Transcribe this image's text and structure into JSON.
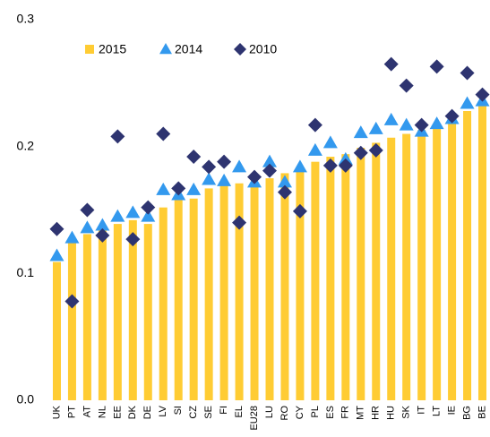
{
  "chart_data": {
    "type": "bar",
    "categories": [
      "UK",
      "PT",
      "AT",
      "NL",
      "EE",
      "DK",
      "DE",
      "LV",
      "SI",
      "CZ",
      "SE",
      "FI",
      "EL",
      "EU28",
      "LU",
      "RO",
      "CY",
      "PL",
      "ES",
      "FR",
      "MT",
      "HR",
      "HU",
      "SK",
      "IT",
      "LT",
      "IE",
      "BG",
      "BE"
    ],
    "series": [
      {
        "name": "2015",
        "marker": "bar",
        "color": "#ffcc33",
        "values": [
          0.109,
          0.125,
          0.131,
          0.136,
          0.139,
          0.142,
          0.139,
          0.152,
          0.159,
          0.159,
          0.167,
          0.169,
          0.171,
          0.171,
          0.175,
          0.179,
          0.181,
          0.188,
          0.192,
          0.194,
          0.199,
          0.203,
          0.207,
          0.21,
          0.213,
          0.215,
          0.218,
          0.228,
          0.232
        ]
      },
      {
        "name": "2014",
        "marker": "triangle",
        "color": "#3399ee",
        "values": [
          0.114,
          0.128,
          0.136,
          0.138,
          0.145,
          0.148,
          0.145,
          0.166,
          0.162,
          0.166,
          0.174,
          0.173,
          0.184,
          0.172,
          0.188,
          0.172,
          0.184,
          0.197,
          0.203,
          0.19,
          0.211,
          0.214,
          0.221,
          0.217,
          0.212,
          0.218,
          0.222,
          0.234,
          0.236
        ]
      },
      {
        "name": "2010",
        "marker": "diamond",
        "color": "#2e3470",
        "values": [
          0.135,
          0.078,
          0.15,
          0.13,
          0.208,
          0.127,
          0.152,
          0.21,
          0.167,
          0.192,
          0.184,
          0.188,
          0.14,
          0.176,
          0.181,
          0.164,
          0.149,
          0.217,
          0.185,
          0.185,
          0.195,
          0.197,
          0.265,
          0.248,
          0.217,
          0.263,
          0.224,
          0.258,
          0.241
        ]
      }
    ],
    "ylim": [
      0,
      0.3
    ],
    "yticks": [
      {
        "value": 0,
        "label": "0.0"
      },
      0.1,
      0.2,
      0.3
    ],
    "legend": "top"
  }
}
